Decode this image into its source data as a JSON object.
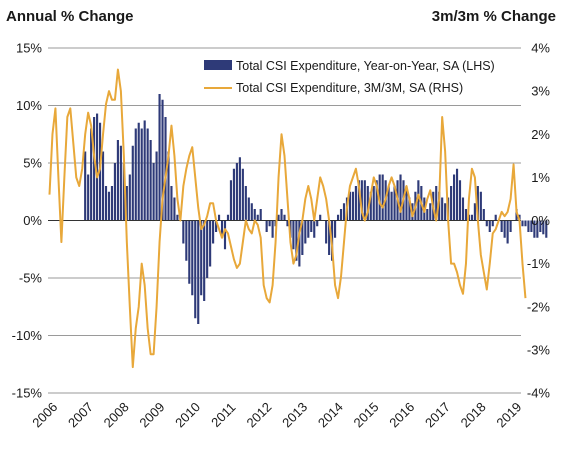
{
  "chart_data": {
    "type": "bar",
    "ylabel_left": "Annual % Change",
    "ylabel_right": "3m/3m % Change",
    "ylim_left": [
      -15,
      15
    ],
    "yticks_left": [
      -15,
      -10,
      -5,
      0,
      5,
      10,
      15
    ],
    "ytick_labels_left": [
      "-15%",
      "-10%",
      "-5%",
      "0%",
      "5%",
      "10%",
      "15%"
    ],
    "ylim_right": [
      -4,
      4
    ],
    "yticks_right": [
      -4,
      -3,
      -2,
      -1,
      0,
      1,
      2,
      3,
      4
    ],
    "ytick_labels_right": [
      "-4%",
      "-3%",
      "-2%",
      "-1%",
      "0%",
      "1%",
      "2%",
      "3%",
      "4%"
    ],
    "xlim": [
      2006.0,
      2019.25
    ],
    "xticks": [
      2006,
      2007,
      2008,
      2009,
      2010,
      2011,
      2012,
      2013,
      2014,
      2015,
      2016,
      2017,
      2018,
      2019
    ],
    "xtick_labels": [
      "2006",
      "2007",
      "2008",
      "2009",
      "2010",
      "2011",
      "2012",
      "2013",
      "2014",
      "2015",
      "2016",
      "2017",
      "2018",
      "2019"
    ],
    "grid": "horizontal",
    "legend_position": "top-right",
    "colors": {
      "bars": "#2e3a78",
      "line": "#e8a83a",
      "grid": "#9a9a9a",
      "zero": "#333333"
    },
    "series": [
      {
        "name": "Total CSI Expenditure, Year-on-Year, SA (LHS)",
        "kind": "bar",
        "axis": "left",
        "start": 2006.0,
        "step": 0.0833333,
        "values": [
          0.0,
          0.0,
          0.0,
          0.0,
          0.0,
          0.0,
          0.0,
          0.0,
          0.0,
          0.0,
          0.0,
          0.0,
          6.0,
          4.0,
          8.0,
          9.0,
          9.3,
          8.5,
          6.0,
          3.0,
          2.5,
          3.0,
          5.0,
          7.0,
          6.5,
          5.0,
          3.0,
          4.0,
          6.5,
          8.0,
          8.5,
          8.0,
          8.7,
          8.0,
          7.0,
          5.0,
          6.0,
          11.0,
          10.5,
          9.0,
          6.0,
          3.0,
          2.0,
          0.5,
          0.0,
          -2.0,
          -3.5,
          -5.5,
          -6.5,
          -8.5,
          -9.0,
          -6.5,
          -7.0,
          -5.0,
          -4.0,
          -2.0,
          -1.0,
          0.5,
          -1.5,
          -2.5,
          0.5,
          3.5,
          4.5,
          5.0,
          5.5,
          4.5,
          3.0,
          2.0,
          1.5,
          1.0,
          0.5,
          1.0,
          0.0,
          -1.0,
          -0.5,
          -1.5,
          -0.5,
          0.5,
          1.0,
          0.5,
          -0.5,
          -1.5,
          -2.5,
          -3.5,
          -4.0,
          -3.0,
          -2.0,
          -1.5,
          -1.0,
          -1.5,
          -0.5,
          0.5,
          0.0,
          -2.0,
          -3.0,
          -3.5,
          -1.5,
          0.5,
          1.0,
          1.5,
          2.0,
          2.5,
          2.5,
          3.0,
          3.5,
          3.5,
          3.5,
          3.0,
          2.5,
          3.0,
          3.5,
          4.0,
          4.0,
          3.5,
          3.0,
          2.5,
          3.0,
          3.5,
          4.0,
          3.5,
          3.0,
          2.0,
          1.5,
          2.5,
          3.5,
          3.0,
          2.0,
          1.0,
          1.5,
          2.5,
          3.0,
          2.5,
          2.0,
          1.5,
          2.0,
          3.0,
          4.0,
          4.5,
          3.5,
          2.0,
          1.0,
          0.5,
          0.5,
          1.5,
          3.0,
          2.5,
          1.0,
          -0.5,
          -1.0,
          -0.5,
          0.5,
          0.0,
          -1.0,
          -1.5,
          -2.0,
          -1.0,
          0.0,
          1.0,
          0.5,
          -0.5,
          -0.5,
          -1.0,
          -1.0,
          -1.5,
          -1.5,
          -1.0,
          -1.2,
          -1.5
        ]
      },
      {
        "name": "Total CSI Expenditure, 3M/3M, SA (RHS)",
        "kind": "line",
        "axis": "right",
        "start": 2006.0,
        "step": 0.0833333,
        "values": [
          0.6,
          2.0,
          2.6,
          1.0,
          -0.5,
          1.0,
          2.4,
          2.6,
          1.8,
          1.0,
          0.8,
          1.2,
          2.0,
          2.5,
          2.2,
          1.5,
          1.0,
          1.2,
          2.0,
          2.7,
          3.0,
          2.8,
          2.8,
          3.5,
          3.0,
          1.5,
          -0.5,
          -2.0,
          -3.4,
          -2.5,
          -2.0,
          -1.0,
          -1.5,
          -2.5,
          -3.1,
          -3.1,
          -2.0,
          -0.5,
          0.5,
          1.0,
          1.5,
          2.2,
          1.5,
          0.5,
          0.0,
          0.8,
          1.2,
          1.5,
          1.7,
          1.0,
          0.3,
          -0.2,
          -0.1,
          0.1,
          0.4,
          0.4,
          0.0,
          -0.2,
          -0.4,
          -0.2,
          -0.3,
          -0.6,
          -0.9,
          -1.1,
          -1.0,
          -0.5,
          0.0,
          -0.2,
          -0.3,
          0.0,
          -0.1,
          -0.4,
          -1.5,
          -1.8,
          -1.9,
          -1.5,
          -0.5,
          1.0,
          2.0,
          1.5,
          0.5,
          -0.5,
          -1.0,
          -0.8,
          -0.3,
          0.0,
          0.5,
          0.8,
          0.5,
          0.0,
          0.5,
          1.0,
          0.8,
          0.5,
          0.0,
          -0.6,
          -1.5,
          -1.8,
          -1.3,
          -0.5,
          0.3,
          0.8,
          1.0,
          1.2,
          0.8,
          0.2,
          0.0,
          0.2,
          0.6,
          1.0,
          0.8,
          0.4,
          0.3,
          0.5,
          0.8,
          1.0,
          0.8,
          0.5,
          0.2,
          0.5,
          0.8,
          0.5,
          0.1,
          0.3,
          0.6,
          0.4,
          0.2,
          0.5,
          0.7,
          0.3,
          0.0,
          0.5,
          2.4,
          1.6,
          0.0,
          -1.0,
          -1.0,
          -1.2,
          -1.5,
          -1.7,
          -1.0,
          0.5,
          1.2,
          1.0,
          0.0,
          -0.8,
          -1.2,
          -1.6,
          -1.0,
          -0.3,
          -0.2,
          0.0,
          0.2,
          0.1,
          0.2,
          0.5,
          1.3,
          0.2,
          0.0,
          -1.0,
          -1.8
        ]
      }
    ]
  }
}
